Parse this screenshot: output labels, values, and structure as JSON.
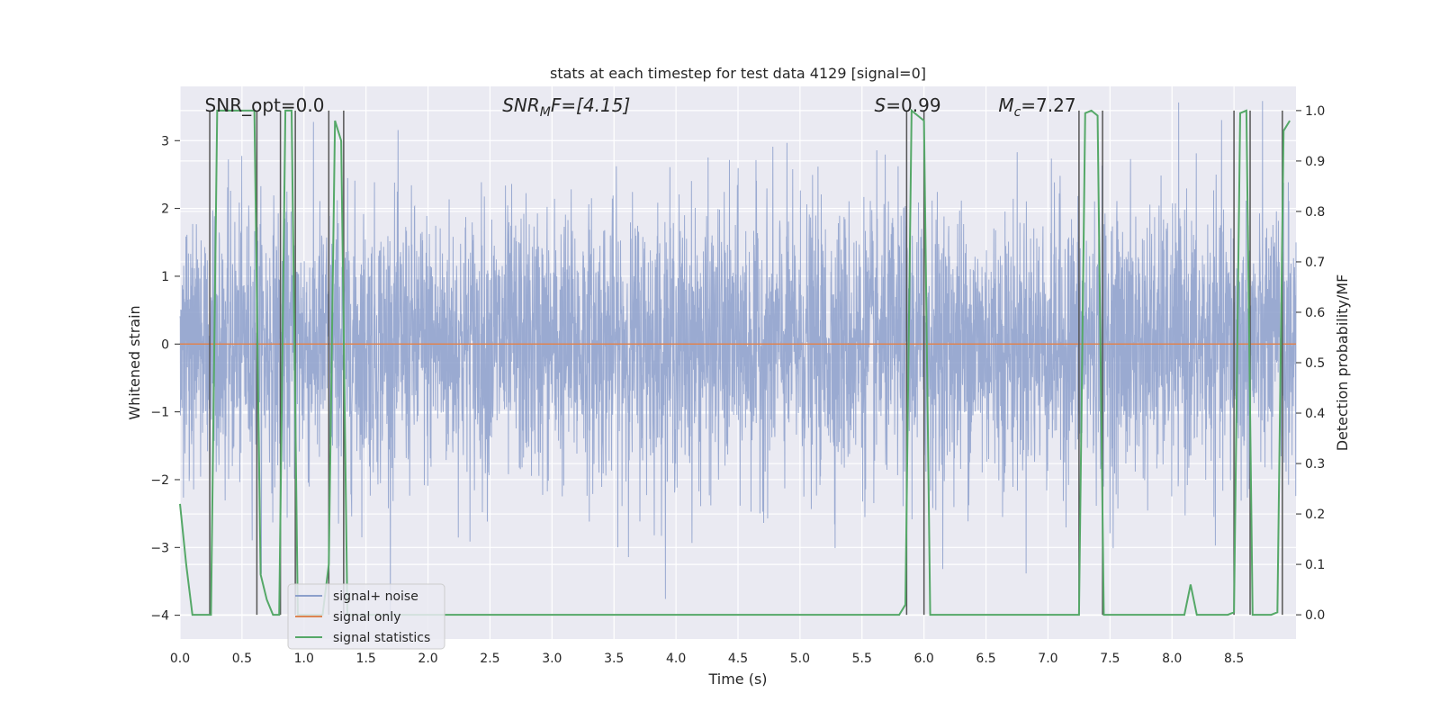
{
  "chart_data": {
    "type": "line",
    "title": "stats at each timestep for test data 4129 [signal=0]",
    "xlabel": "Time (s)",
    "ylabel": "Whitened strain",
    "y2label": "Detection probability/MF",
    "xlim": [
      0.0,
      9.0
    ],
    "ylim": [
      -4.35,
      3.8
    ],
    "y2lim": [
      -0.048,
      1.048
    ],
    "xticks": [
      0.0,
      0.5,
      1.0,
      1.5,
      2.0,
      2.5,
      3.0,
      3.5,
      4.0,
      4.5,
      5.0,
      5.5,
      6.0,
      6.5,
      7.0,
      7.5,
      8.0,
      8.5
    ],
    "xtick_labels": [
      "0.0",
      "0.5",
      "1.0",
      "1.5",
      "2.0",
      "2.5",
      "3.0",
      "3.5",
      "4.0",
      "4.5",
      "5.0",
      "5.5",
      "6.0",
      "6.5",
      "7.0",
      "7.5",
      "8.0",
      "8.5"
    ],
    "yticks": [
      -4,
      -3,
      -2,
      -1,
      0,
      1,
      2,
      3
    ],
    "ytick_labels": [
      "−4",
      "−3",
      "−2",
      "−1",
      "0",
      "1",
      "2",
      "3"
    ],
    "y2ticks": [
      0.0,
      0.1,
      0.2,
      0.3,
      0.4,
      0.5,
      0.6,
      0.7,
      0.8,
      0.9,
      1.0
    ],
    "y2tick_labels": [
      "0.0",
      "0.1",
      "0.2",
      "0.3",
      "0.4",
      "0.5",
      "0.6",
      "0.7",
      "0.8",
      "0.9",
      "1.0"
    ],
    "grid": true,
    "legend_position": "lower-left",
    "annotations": [
      {
        "kind": "plain",
        "text": "SNR_opt=0.0",
        "x": 0.2
      },
      {
        "kind": "mf",
        "base": "SNR",
        "sub": "M",
        "tail": "F=[4.15]",
        "x": 2.6
      },
      {
        "kind": "s",
        "italic": "S",
        "tail": "=0.99",
        "x": 5.6
      },
      {
        "kind": "mc",
        "base": "M",
        "sub": "c",
        "tail": "=7.27",
        "x": 6.6
      }
    ],
    "series": [
      {
        "name": "signal+ noise",
        "color": "#8c9fcb",
        "axis": "left",
        "kind": "noise",
        "n_samples": 4500,
        "seed": 4129,
        "sigma": 1.0
      },
      {
        "name": "signal only",
        "color": "#dd8452",
        "axis": "left",
        "kind": "constant",
        "value": 0.0
      },
      {
        "name": "signal statistics",
        "color": "#55a868",
        "axis": "right",
        "x": [
          0.0,
          0.05,
          0.1,
          0.15,
          0.2,
          0.25,
          0.3,
          0.35,
          0.4,
          0.45,
          0.5,
          0.55,
          0.6,
          0.65,
          0.7,
          0.75,
          0.8,
          0.85,
          0.9,
          0.95,
          1.0,
          1.05,
          1.1,
          1.15,
          1.2,
          1.25,
          1.3,
          1.35,
          1.4,
          1.45,
          1.5,
          5.8,
          5.85,
          5.9,
          5.95,
          6.0,
          6.05,
          6.1,
          7.2,
          7.25,
          7.3,
          7.35,
          7.4,
          7.45,
          7.5,
          8.1,
          8.15,
          8.2,
          8.25,
          8.3,
          8.45,
          8.5,
          8.55,
          8.6,
          8.65,
          8.7,
          8.75,
          8.8,
          8.85,
          8.9,
          8.95
        ],
        "y": [
          0.22,
          0.1,
          0.0,
          0.0,
          0.0,
          0.0,
          1.0,
          1.0,
          1.0,
          1.0,
          1.0,
          1.0,
          1.0,
          0.08,
          0.03,
          0.0,
          0.0,
          1.0,
          1.0,
          0.0,
          0.0,
          0.0,
          0.0,
          0.0,
          0.1,
          0.98,
          0.94,
          0.0,
          0.0,
          0.0,
          0.0,
          0.0,
          0.02,
          1.0,
          0.99,
          0.98,
          0.0,
          0.0,
          0.0,
          0.0,
          0.995,
          1.0,
          0.99,
          0.0,
          0.0,
          0.0,
          0.06,
          0.0,
          0.0,
          0.0,
          0.0,
          0.005,
          0.995,
          1.0,
          0.0,
          0.0,
          0.0,
          0.0,
          0.005,
          0.96,
          0.98
        ]
      }
    ],
    "vlines": [
      0.24,
      0.62,
      0.81,
      0.93,
      1.2,
      1.32,
      5.86,
      6.0,
      7.25,
      7.44,
      8.5,
      8.63,
      8.89
    ]
  }
}
